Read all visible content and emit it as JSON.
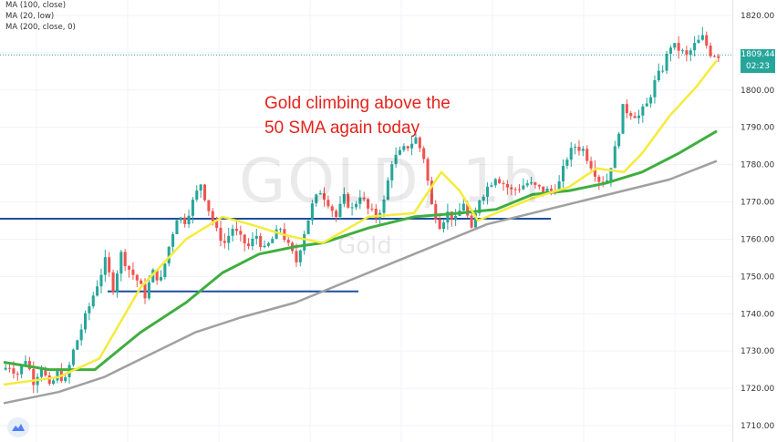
{
  "legend": [
    "MA (100, close)",
    "MA (20, low)",
    "MA (200, close, 0)"
  ],
  "annotation": [
    "Gold climbing above the",
    "50 SMA again today"
  ],
  "watermark": {
    "symbol": "GOLD",
    "timeframe": "1h",
    "name": "Gold"
  },
  "price_label": {
    "value": "1809.44",
    "countdown": "02:23"
  },
  "colors": {
    "up": "#26a69a",
    "down": "#ef5350",
    "ma_yellow": "#f5eb3b",
    "ma_green": "#3fae3f",
    "ma_gray": "#a0a0a0",
    "support": "#1f4e9e",
    "annotation": "#e3231d",
    "price_tag": "#26a69a"
  },
  "chart_data": {
    "type": "candlestick",
    "y_axis": {
      "min": 1710,
      "max": 1820,
      "ticks": [
        1710,
        1720,
        1730,
        1740,
        1750,
        1760,
        1770,
        1780,
        1790,
        1800,
        1810,
        1820
      ]
    },
    "grid": true,
    "close_path": [
      1725,
      1726,
      1724,
      1728,
      1722,
      1726,
      1720,
      1724,
      1722,
      1730,
      1736,
      1742,
      1748,
      1754,
      1747,
      1756,
      1752,
      1749,
      1745,
      1751,
      1749,
      1758,
      1766,
      1765,
      1770,
      1775,
      1768,
      1762,
      1759,
      1763,
      1760,
      1758,
      1761,
      1757,
      1760,
      1763,
      1758,
      1754,
      1762,
      1769,
      1773,
      1770,
      1766,
      1771,
      1768,
      1772,
      1768,
      1766,
      1770,
      1781,
      1783,
      1785,
      1787,
      1782,
      1769,
      1764,
      1767,
      1765,
      1770,
      1762,
      1771,
      1774,
      1777,
      1775,
      1773,
      1774,
      1775,
      1774,
      1773,
      1773,
      1775,
      1782,
      1785,
      1784,
      1780,
      1776,
      1776,
      1784,
      1795,
      1794,
      1793,
      1796,
      1802,
      1806,
      1812,
      1811,
      1809,
      1812,
      1814,
      1810,
      1809.44
    ],
    "ma_yellow": [
      [
        0,
        1721
      ],
      [
        60,
        1723
      ],
      [
        105,
        1728
      ],
      [
        150,
        1747
      ],
      [
        200,
        1760
      ],
      [
        240,
        1766
      ],
      [
        270,
        1764
      ],
      [
        310,
        1761
      ],
      [
        350,
        1759
      ],
      [
        400,
        1766
      ],
      [
        450,
        1767
      ],
      [
        480,
        1778
      ],
      [
        500,
        1773
      ],
      [
        520,
        1765
      ],
      [
        550,
        1768
      ],
      [
        580,
        1771
      ],
      [
        620,
        1774
      ],
      [
        650,
        1779
      ],
      [
        680,
        1778
      ],
      [
        700,
        1783
      ],
      [
        730,
        1793
      ],
      [
        760,
        1801
      ],
      [
        782,
        1808
      ]
    ],
    "ma_green": [
      [
        0,
        1727
      ],
      [
        50,
        1725
      ],
      [
        100,
        1725
      ],
      [
        150,
        1735
      ],
      [
        200,
        1743
      ],
      [
        240,
        1751
      ],
      [
        280,
        1756
      ],
      [
        320,
        1758
      ],
      [
        350,
        1759
      ],
      [
        400,
        1763
      ],
      [
        450,
        1766
      ],
      [
        500,
        1767
      ],
      [
        540,
        1768
      ],
      [
        580,
        1772
      ],
      [
        620,
        1773
      ],
      [
        660,
        1775
      ],
      [
        700,
        1778
      ],
      [
        740,
        1783
      ],
      [
        782,
        1789
      ]
    ],
    "ma_gray": [
      [
        0,
        1716
      ],
      [
        60,
        1719
      ],
      [
        110,
        1723
      ],
      [
        160,
        1729
      ],
      [
        210,
        1735
      ],
      [
        260,
        1739
      ],
      [
        320,
        1743
      ],
      [
        360,
        1747
      ],
      [
        420,
        1753
      ],
      [
        480,
        1759
      ],
      [
        530,
        1764
      ],
      [
        580,
        1767
      ],
      [
        630,
        1770
      ],
      [
        680,
        1773
      ],
      [
        730,
        1776
      ],
      [
        782,
        1781
      ]
    ],
    "support_levels": [
      {
        "price": 1765.5,
        "from": 0,
        "to": 604
      },
      {
        "price": 1746,
        "from": 118,
        "to": 393
      }
    ],
    "last_price_line": 1809.44
  }
}
